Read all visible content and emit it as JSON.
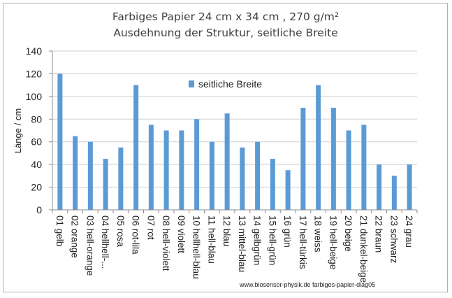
{
  "chart_data": {
    "type": "bar",
    "title": "Farbiges Papier 24 cm x 34 cm , 270 g/m²",
    "subtitle": "Ausdehnung der Struktur, seitliche Breite",
    "ylabel": "Länge / cm",
    "xlabel": "",
    "ylim": [
      0,
      140
    ],
    "yticks": [
      0,
      20,
      40,
      60,
      80,
      100,
      120,
      140
    ],
    "grid": true,
    "legend_position": "top-center",
    "bar_color": "#5b9bd5",
    "categories": [
      "01 gelb",
      "02 orange",
      "03 hell-orange",
      "04 hellhell-...",
      "05 rosa",
      "06 rot-lila",
      "07 rot",
      "08 hell-violett",
      "09 violett",
      "10 hellhell-blau",
      "11 hell-blau",
      "12 blau",
      "13 mittel-blau",
      "14 gelbgrün",
      "15 hell-grün",
      "16 grün",
      "17 hell-türkis",
      "18 weiss",
      "19 hell-beige",
      "20 beige",
      "21 dunkel-beige",
      "22 braun",
      "23 schwarz",
      "24 grau"
    ],
    "series": [
      {
        "name": "seitliche Breite",
        "values": [
          120,
          65,
          60,
          45,
          55,
          110,
          75,
          70,
          70,
          80,
          60,
          85,
          55,
          60,
          45,
          35,
          90,
          110,
          90,
          70,
          75,
          40,
          30,
          40
        ]
      }
    ],
    "footer": "www.biosensor-physik.de farbiges-papier-diag05"
  }
}
